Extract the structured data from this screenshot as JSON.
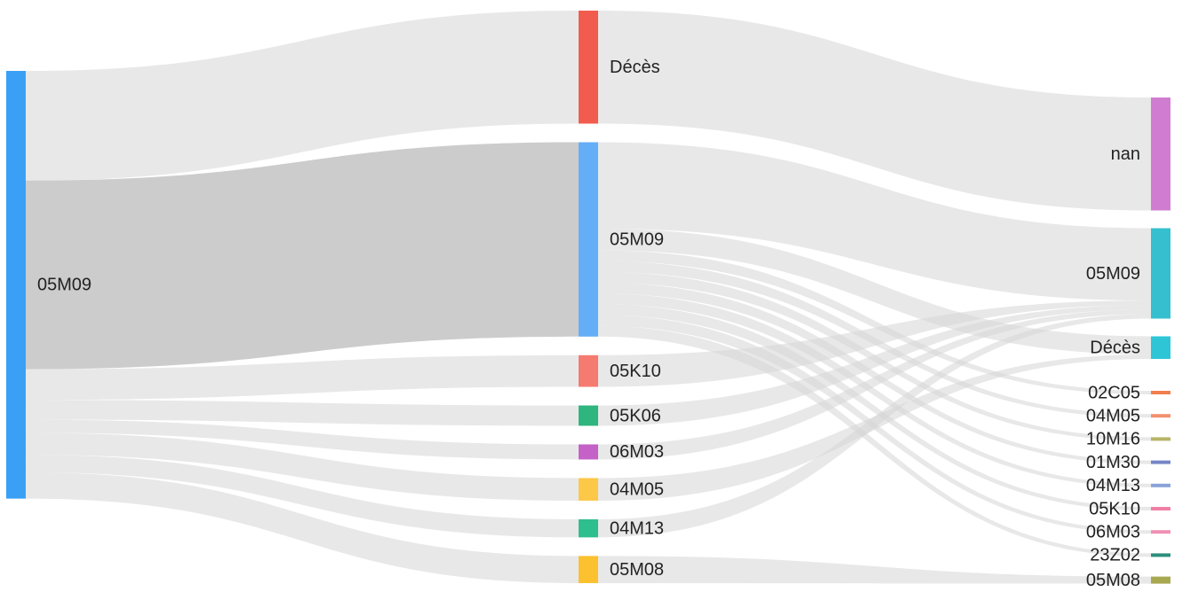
{
  "diagram": {
    "type": "sankey",
    "columns": [
      {
        "nodes": [
          {
            "id": "c0-05M09",
            "label": "05M09",
            "color": "#3aa0f5"
          }
        ]
      },
      {
        "nodes": [
          {
            "id": "c1-deces",
            "label": "Décès",
            "color": "#f25c4f"
          },
          {
            "id": "c1-05M09",
            "label": "05M09",
            "color": "#64aef7"
          },
          {
            "id": "c1-05K10",
            "label": "05K10",
            "color": "#f57a70"
          },
          {
            "id": "c1-05K06",
            "label": "05K06",
            "color": "#2fb57e"
          },
          {
            "id": "c1-06M03",
            "label": "06M03",
            "color": "#c462c8"
          },
          {
            "id": "c1-04M05",
            "label": "04M05",
            "color": "#fdc847"
          },
          {
            "id": "c1-04M13",
            "label": "04M13",
            "color": "#2fbe8d"
          },
          {
            "id": "c1-05M08",
            "label": "05M08",
            "color": "#fbc12e"
          }
        ]
      },
      {
        "nodes": [
          {
            "id": "c2-nan",
            "label": "nan",
            "color": "#d07dd1"
          },
          {
            "id": "c2-05M09",
            "label": "05M09",
            "color": "#35bfcf"
          },
          {
            "id": "c2-deces",
            "label": "Décès",
            "color": "#2ec6d7"
          },
          {
            "id": "c2-02C05",
            "label": "02C05",
            "color": "#f27d4e"
          },
          {
            "id": "c2-04M05",
            "label": "04M05",
            "color": "#f4906f"
          },
          {
            "id": "c2-10M16",
            "label": "10M16",
            "color": "#b6b467"
          },
          {
            "id": "c2-01M30",
            "label": "01M30",
            "color": "#7586c6"
          },
          {
            "id": "c2-04M13",
            "label": "04M13",
            "color": "#8aa2d9"
          },
          {
            "id": "c2-05K10",
            "label": "05K10",
            "color": "#ef7fa6"
          },
          {
            "id": "c2-06M03",
            "label": "06M03",
            "color": "#f08fb4"
          },
          {
            "id": "c2-23Z02",
            "label": "23Z02",
            "color": "#2e8f7d"
          },
          {
            "id": "c2-05M08",
            "label": "05M08",
            "color": "#a8a851"
          }
        ]
      }
    ],
    "links": [
      {
        "source": "c0-05M09",
        "target": "c1-deces",
        "value": 25
      },
      {
        "source": "c0-05M09",
        "target": "c1-05M09",
        "value": 43
      },
      {
        "source": "c0-05M09",
        "target": "c1-05K10",
        "value": 7
      },
      {
        "source": "c0-05M09",
        "target": "c1-05K06",
        "value": 4.5
      },
      {
        "source": "c0-05M09",
        "target": "c1-06M03",
        "value": 3
      },
      {
        "source": "c0-05M09",
        "target": "c1-04M05",
        "value": 5
      },
      {
        "source": "c0-05M09",
        "target": "c1-04M13",
        "value": 4
      },
      {
        "source": "c0-05M09",
        "target": "c1-05M08",
        "value": 6
      },
      {
        "source": "c1-deces",
        "target": "c2-nan",
        "value": 25
      },
      {
        "source": "c1-05M09",
        "target": "c2-05M09",
        "value": 16
      },
      {
        "source": "c1-05M09",
        "target": "c2-deces",
        "value": 4
      },
      {
        "source": "c1-05M09",
        "target": "c2-02C05",
        "value": 2
      },
      {
        "source": "c1-05M09",
        "target": "c2-04M05",
        "value": 2
      },
      {
        "source": "c1-05M09",
        "target": "c2-10M16",
        "value": 2
      },
      {
        "source": "c1-05M09",
        "target": "c2-01M30",
        "value": 2
      },
      {
        "source": "c1-05M09",
        "target": "c2-04M13",
        "value": 2
      },
      {
        "source": "c1-05M09",
        "target": "c2-05K10",
        "value": 2
      },
      {
        "source": "c1-05M09",
        "target": "c2-06M03",
        "value": 2
      },
      {
        "source": "c1-05M09",
        "target": "c2-23Z02",
        "value": 2
      },
      {
        "source": "c1-05K10",
        "target": "c2-05M09",
        "value": 1
      },
      {
        "source": "c1-05K06",
        "target": "c2-05M09",
        "value": 1
      },
      {
        "source": "c1-06M03",
        "target": "c2-05M09",
        "value": 1
      },
      {
        "source": "c1-04M05",
        "target": "c2-deces",
        "value": 1
      },
      {
        "source": "c1-04M13",
        "target": "c2-05M09",
        "value": 1
      },
      {
        "source": "c1-05M08",
        "target": "c2-05M08",
        "value": 1
      }
    ]
  }
}
